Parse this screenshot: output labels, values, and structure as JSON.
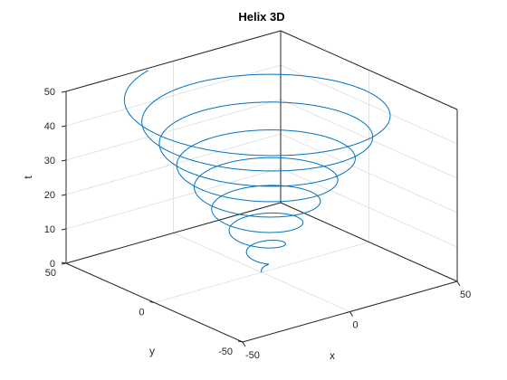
{
  "chart_data": {
    "type": "line",
    "title": "Helix 3D",
    "xlabel": "x",
    "ylabel": "y",
    "zlabel": "t",
    "xlim": [
      -50,
      50
    ],
    "ylim": [
      -50,
      50
    ],
    "zlim": [
      0,
      50
    ],
    "xticks": [
      -50,
      0,
      50
    ],
    "yticks": [
      -50,
      0,
      50
    ],
    "zticks": [
      0,
      10,
      20,
      30,
      40,
      50
    ],
    "grid": true,
    "series": [
      {
        "equation": "x = t·sin(t), y = t·cos(t), z = t",
        "t_range": [
          0,
          50
        ],
        "color": "#0072BD"
      }
    ]
  }
}
